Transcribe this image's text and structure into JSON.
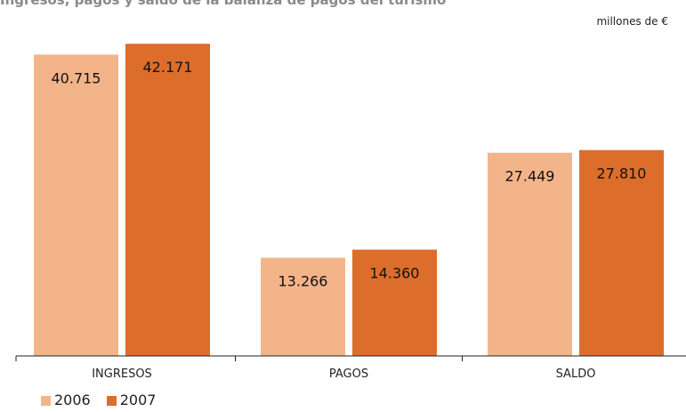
{
  "title": "Ingresos, pagos y saldo de la balanza de pagos del turismo",
  "units_label": "millones de €",
  "colors": {
    "2006": "#f4b48a",
    "2007": "#dd6d2a",
    "axis": "#222222"
  },
  "chart_data": {
    "type": "bar",
    "categories": [
      "INGRESOS",
      "PAGOS",
      "SALDO"
    ],
    "series": [
      {
        "name": "2006",
        "values": [
          40715,
          13266,
          27449
        ],
        "labels": [
          "40.715",
          "13.266",
          "27.449"
        ]
      },
      {
        "name": "2007",
        "values": [
          42171,
          14360,
          27810
        ],
        "labels": [
          "42.171",
          "14.360",
          "27.810"
        ]
      }
    ],
    "ylim": [
      0,
      44480
    ],
    "legend": "bottom-left",
    "grid": false
  }
}
